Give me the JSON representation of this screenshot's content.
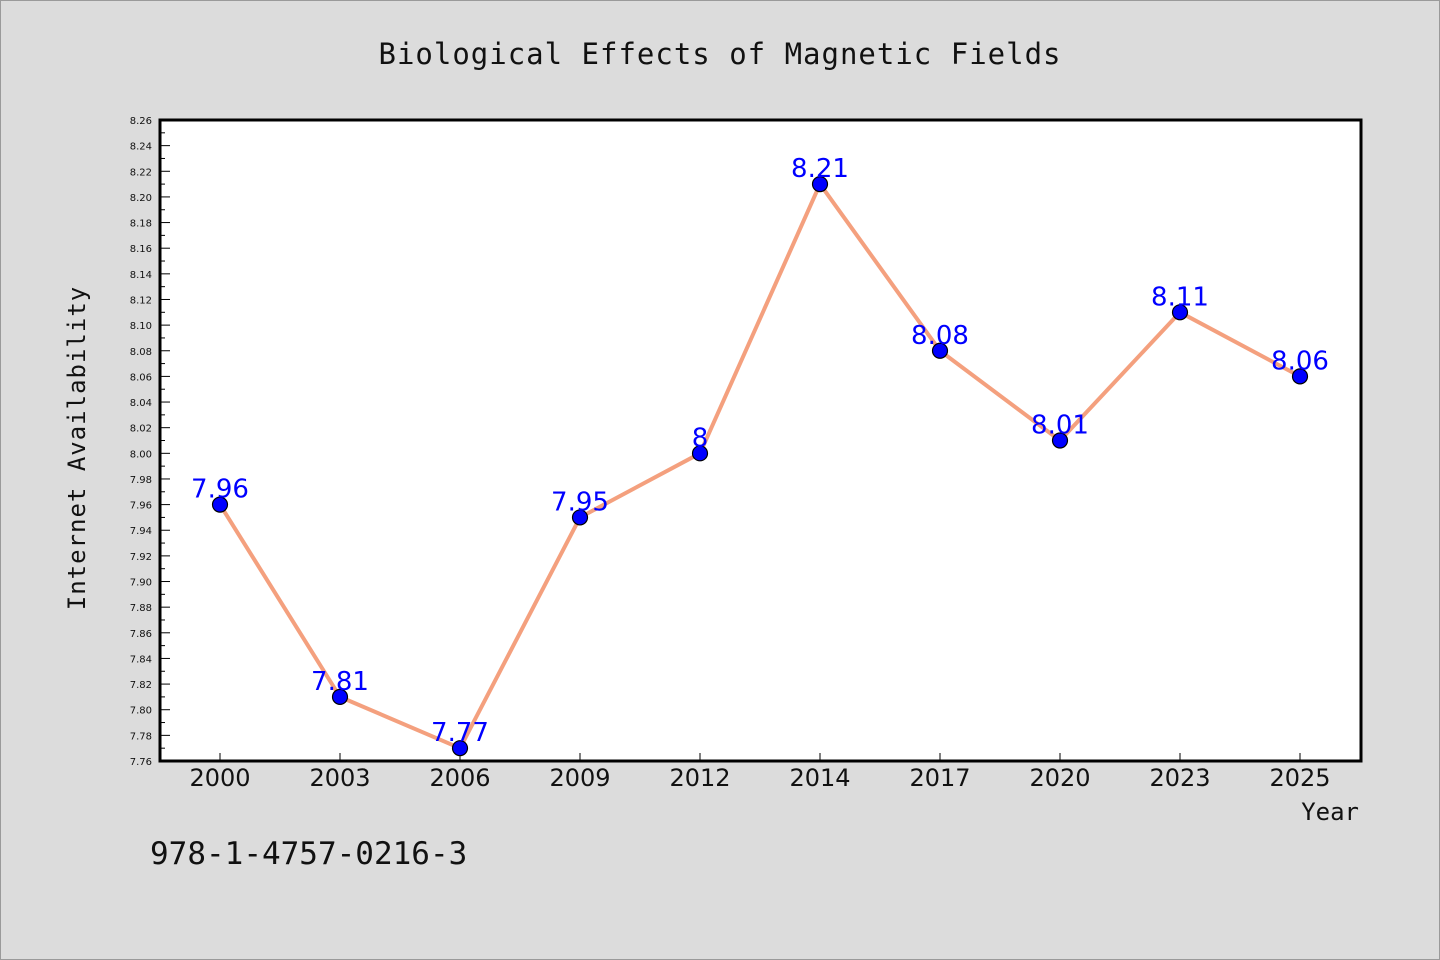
{
  "chart_data": {
    "type": "line",
    "title": "Biological Effects of Magnetic Fields",
    "xlabel": "Year",
    "ylabel": "Internet Availability",
    "categories": [
      "2000",
      "2003",
      "2006",
      "2009",
      "2012",
      "2014",
      "2017",
      "2020",
      "2023",
      "2025"
    ],
    "series": [
      {
        "values": [
          7.96,
          7.81,
          7.77,
          7.95,
          8.0,
          8.21,
          8.08,
          8.01,
          8.11,
          8.06
        ],
        "data_labels": [
          "7.96",
          "7.81",
          "7.77",
          "7.95",
          "8",
          "8.21",
          "8.08",
          "8.01",
          "8.11",
          "8.06"
        ]
      }
    ],
    "ylim": [
      7.76,
      8.26
    ],
    "yticks": [
      "7.76",
      "7.78",
      "7.80",
      "7.82",
      "7.84",
      "7.86",
      "7.88",
      "7.90",
      "7.92",
      "7.94",
      "7.96",
      "7.98",
      "8.00",
      "8.02",
      "8.04",
      "8.06",
      "8.08",
      "8.10",
      "8.12",
      "8.14",
      "8.16",
      "8.18",
      "8.20",
      "8.22",
      "8.24",
      "8.26"
    ],
    "grid": false,
    "legend": "none",
    "colors": {
      "line": "#f4a07e",
      "marker": "#0000ff",
      "marker_edge": "#000000",
      "data_label": "#0000ff",
      "plot_bg": "#ffffff",
      "figure_bg": "#dcdcdc"
    }
  },
  "footer": {
    "isbn": "978-1-4757-0216-3"
  }
}
